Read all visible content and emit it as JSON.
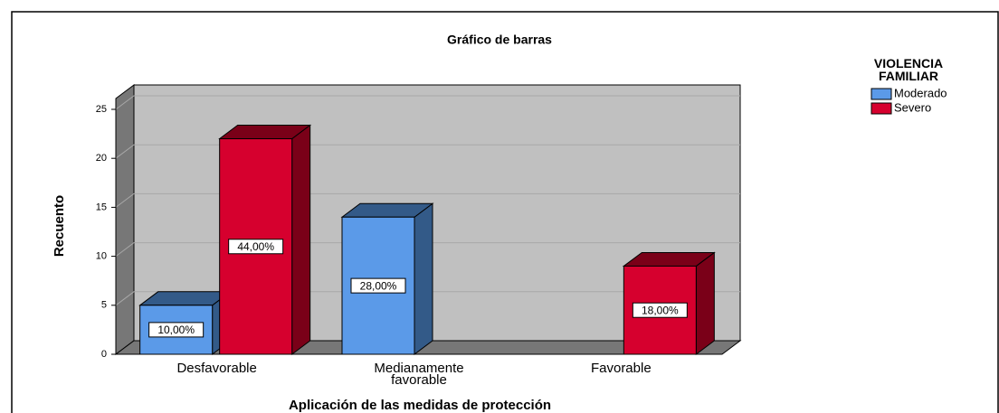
{
  "chart_data": {
    "type": "bar3d",
    "title": "Gráfico de barras",
    "x_label": "Aplicación de las medidas de protección",
    "y_label": "Recuento",
    "legend_title": "VIOLENCIA FAMILIAR",
    "categories": [
      "Desfavorable",
      "Medianamente favorable",
      "Favorable"
    ],
    "series": [
      {
        "name": "Moderado",
        "color": "#5b9ae8",
        "side_color": "#335a88",
        "values": [
          5,
          14,
          null
        ],
        "data_labels": [
          "10,00%",
          "28,00%",
          null
        ]
      },
      {
        "name": "Severo",
        "color": "#d6002e",
        "side_color": "#7a0018",
        "values": [
          22,
          null,
          9
        ],
        "data_labels": [
          "44,00%",
          null,
          "18,00%"
        ]
      }
    ],
    "ylim": [
      0,
      25
    ],
    "yticks": [
      0,
      5,
      10,
      15,
      20,
      25
    ],
    "grid": true,
    "legend": "right"
  }
}
